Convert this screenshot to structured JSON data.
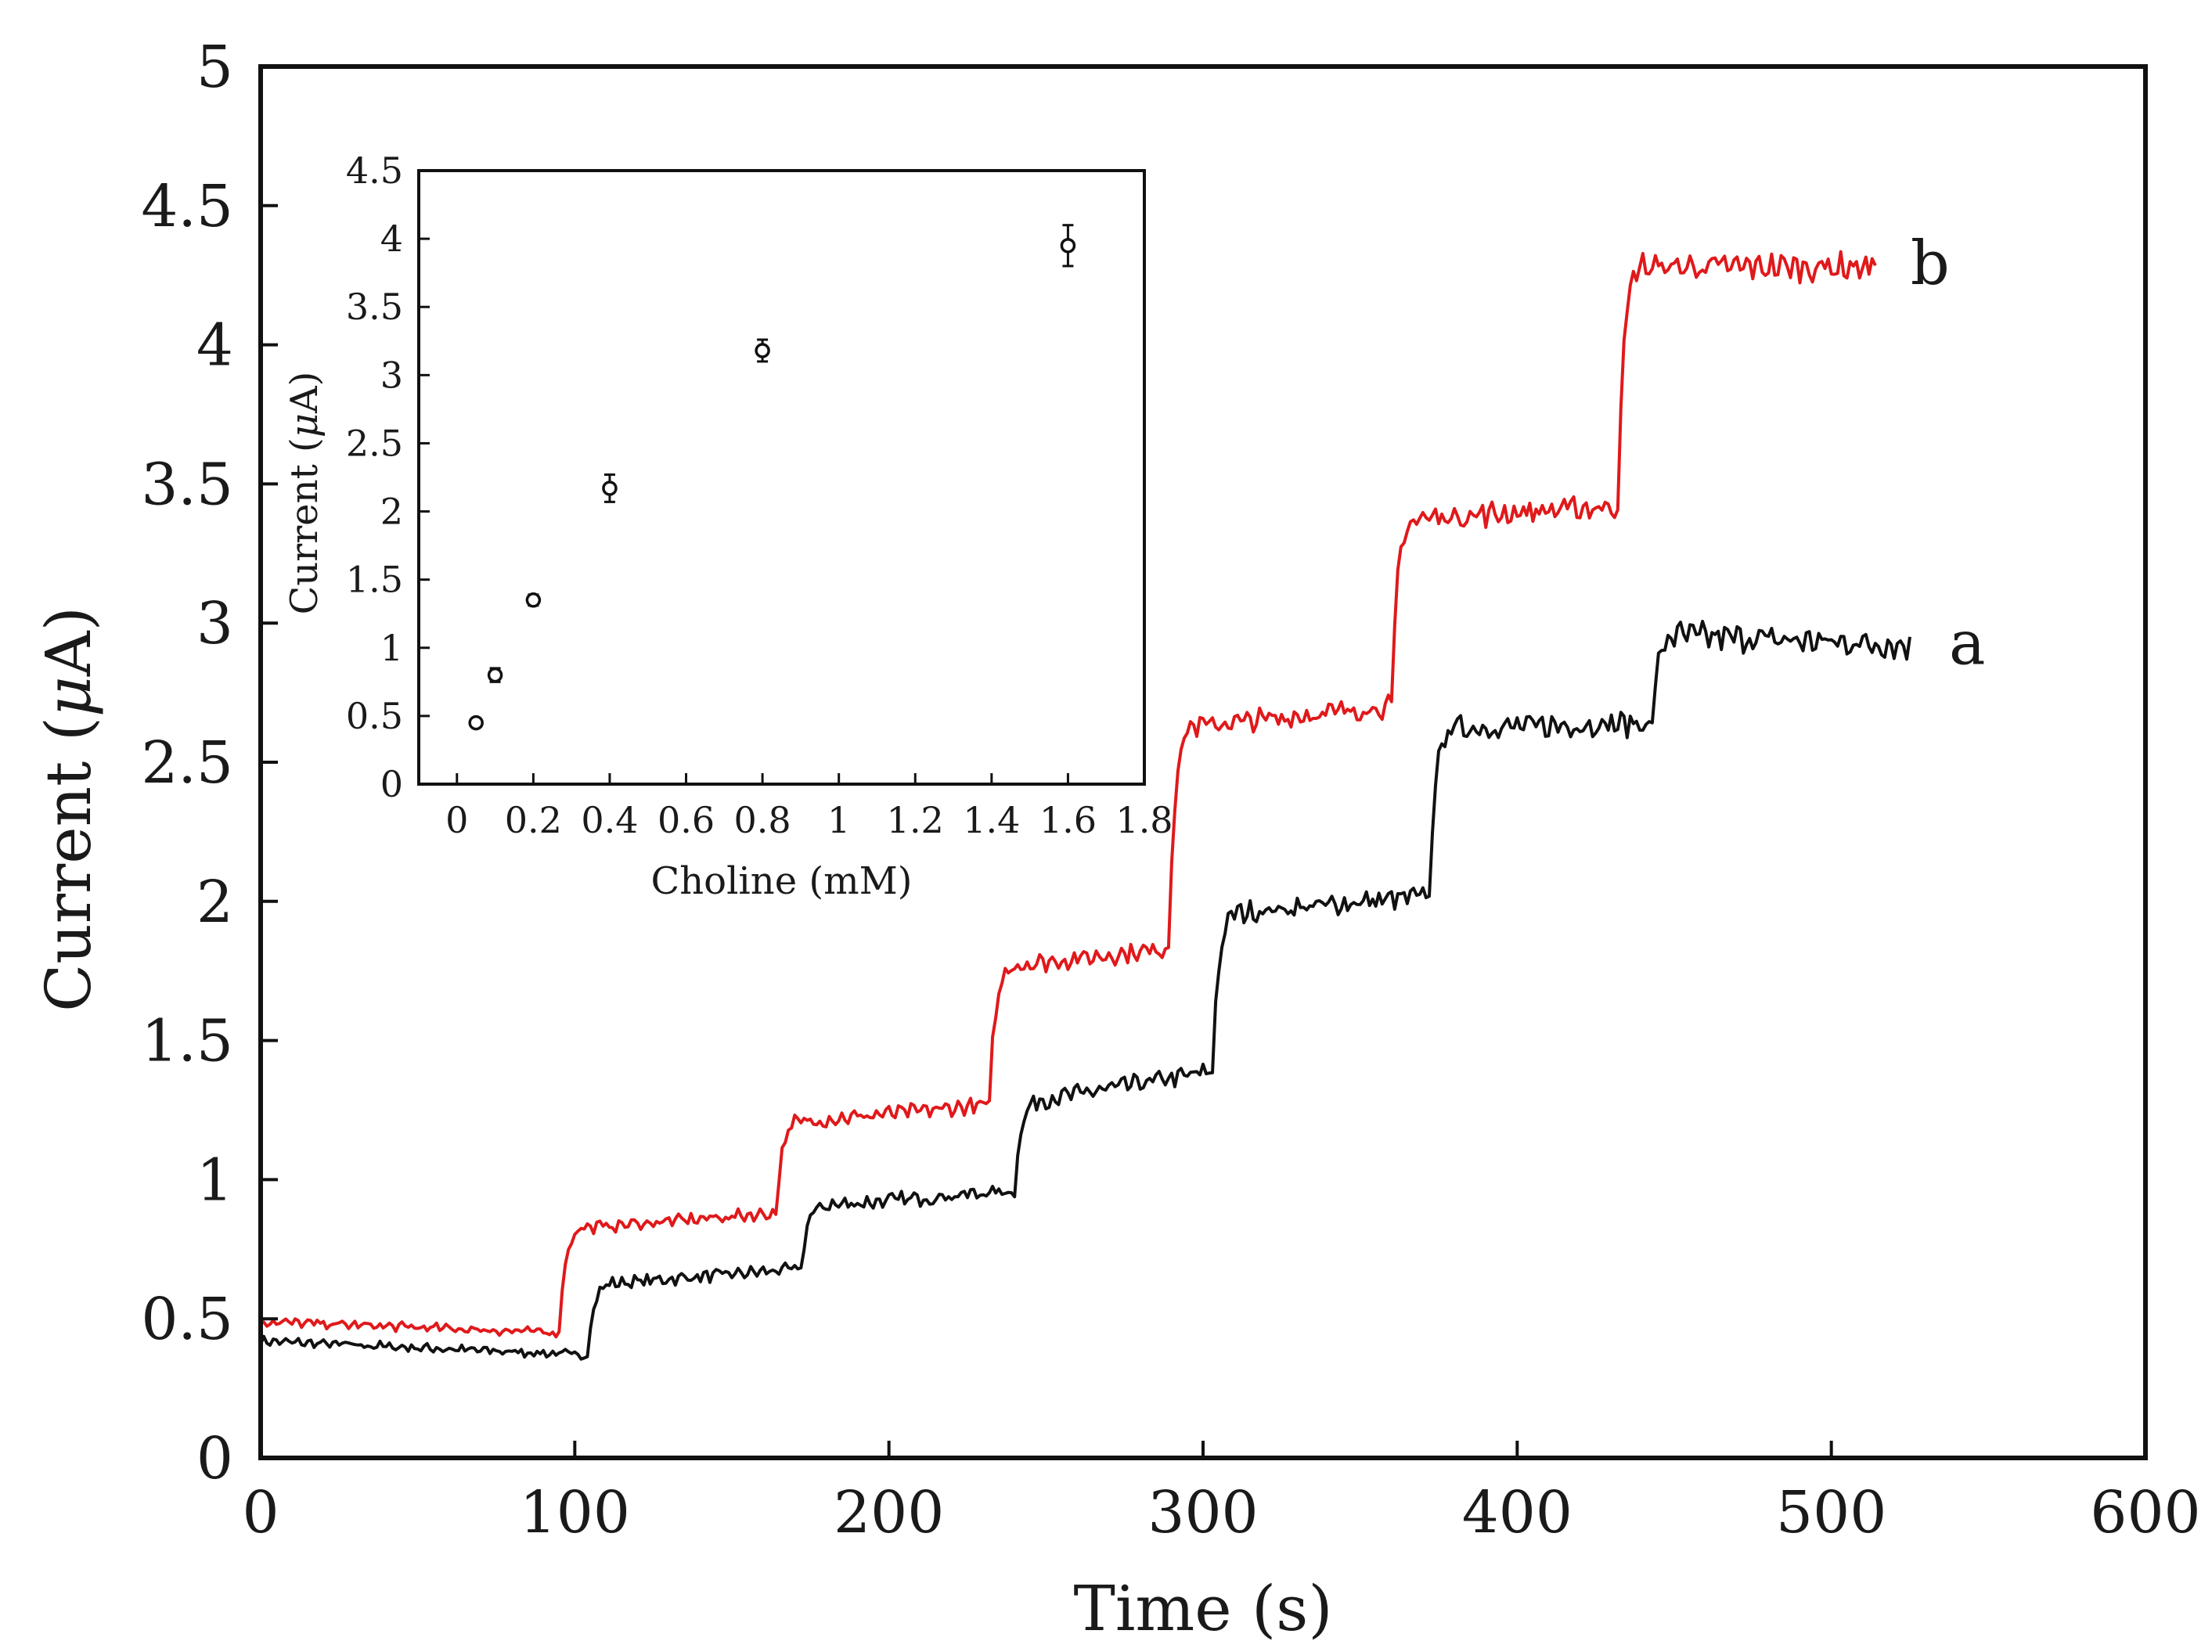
{
  "chart_data": [
    {
      "id": "main",
      "type": "line",
      "title": "",
      "xlabel": "Time (s)",
      "ylabel_prefix": "Current (",
      "ylabel_symbol": "μ",
      "ylabel_suffix": "A)",
      "xlim": [
        0,
        600
      ],
      "ylim": [
        0,
        5
      ],
      "xticks": [
        0,
        100,
        200,
        300,
        400,
        500,
        600
      ],
      "xtick_labels": [
        "0",
        "100",
        "200",
        "300",
        "400",
        "500",
        "600"
      ],
      "yticks": [
        0,
        0.5,
        1,
        1.5,
        2,
        2.5,
        3,
        3.5,
        4,
        4.5,
        5
      ],
      "ytick_labels": [
        "0",
        "0.5",
        "1",
        "1.5",
        "2",
        "2.5",
        "3",
        "3.5",
        "4",
        "4.5",
        "5"
      ],
      "grid": false,
      "series": [
        {
          "name": "a",
          "color": "#111111",
          "t_end": 525,
          "steps": [
            {
              "t": 0,
              "start": 0.42,
              "end": 0.37
            },
            {
              "t": 104,
              "start": 0.62,
              "end": 0.68
            },
            {
              "t": 172,
              "start": 0.9,
              "end": 0.96
            },
            {
              "t": 240,
              "start": 1.27,
              "end": 1.39
            },
            {
              "t": 303,
              "start": 1.95,
              "end": 2.02
            },
            {
              "t": 372,
              "start": 2.62,
              "end": 2.64
            },
            {
              "t": 443,
              "start": 2.96,
              "end": 2.92
            }
          ]
        },
        {
          "name": "b",
          "color": "#e0191b",
          "t_end": 514,
          "steps": [
            {
              "t": 0,
              "start": 0.49,
              "end": 0.45
            },
            {
              "t": 95,
              "start": 0.82,
              "end": 0.88
            },
            {
              "t": 164,
              "start": 1.2,
              "end": 1.27
            },
            {
              "t": 232,
              "start": 1.76,
              "end": 1.83
            },
            {
              "t": 289,
              "start": 2.62,
              "end": 2.7
            },
            {
              "t": 360,
              "start": 3.37,
              "end": 3.42
            },
            {
              "t": 432,
              "start": 4.28,
              "end": 4.28
            }
          ]
        }
      ]
    },
    {
      "id": "inset",
      "type": "scatter",
      "xlabel": "Choline (mM)",
      "ylabel_prefix": "Current (",
      "ylabel_symbol": "μ",
      "ylabel_suffix": "A)",
      "xlim": [
        -0.1,
        1.8
      ],
      "ylim": [
        0,
        4.5
      ],
      "xticks": [
        0,
        0.2,
        0.4,
        0.6,
        0.8,
        1,
        1.2,
        1.4,
        1.6,
        1.8
      ],
      "xtick_labels": [
        "0",
        "0.2",
        "0.4",
        "0.6",
        "0.8",
        "1",
        "1.2",
        "1.4",
        "1.6",
        "1.8"
      ],
      "yticks": [
        0,
        0.5,
        1,
        1.5,
        2,
        2.5,
        3,
        3.5,
        4,
        4.5
      ],
      "ytick_labels": [
        "0",
        "0.5",
        "1",
        "1.5",
        "2",
        "2.5",
        "3",
        "3.5",
        "4",
        "4.5"
      ],
      "grid": false,
      "points": [
        {
          "x": 0.05,
          "y": 0.45,
          "err": 0.02
        },
        {
          "x": 0.1,
          "y": 0.8,
          "err": 0.05
        },
        {
          "x": 0.2,
          "y": 1.35,
          "err": 0.04
        },
        {
          "x": 0.4,
          "y": 2.17,
          "err": 0.1
        },
        {
          "x": 0.8,
          "y": 3.18,
          "err": 0.08
        },
        {
          "x": 1.6,
          "y": 3.95,
          "err": 0.15
        }
      ]
    }
  ]
}
